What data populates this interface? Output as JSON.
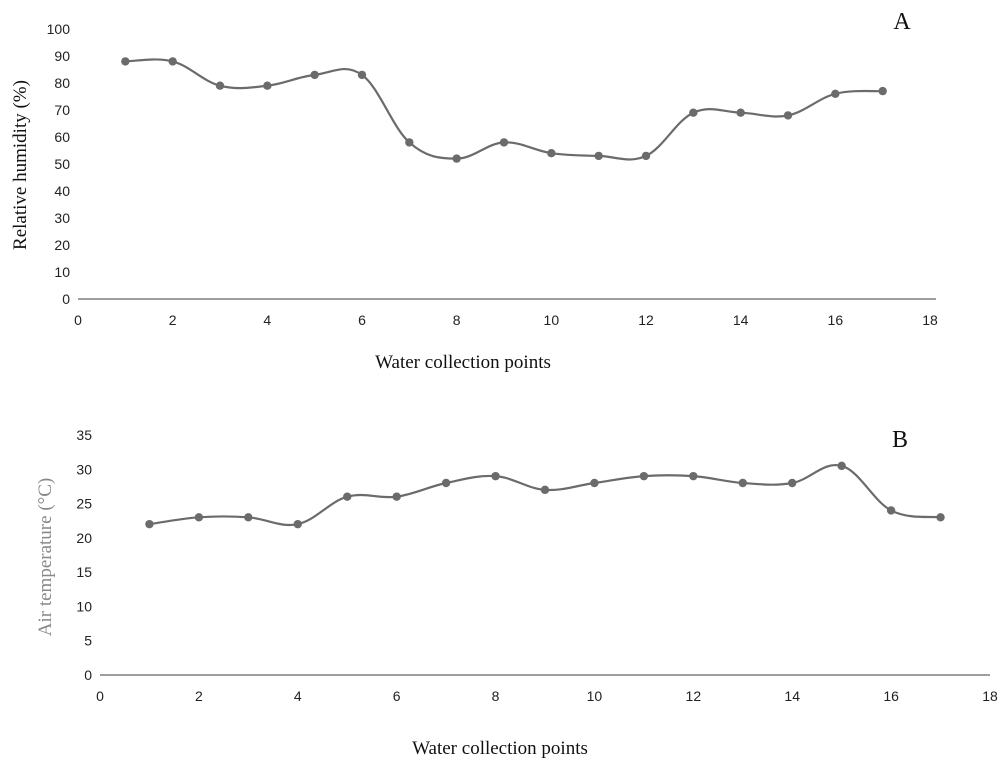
{
  "colors": {
    "series": "#6b6b6b",
    "axis": "#7f7f7f",
    "text": "#222222",
    "ylabel_b": "#888888"
  },
  "chart_data": [
    {
      "type": "line",
      "panel_label": "A",
      "title": "",
      "xlabel": "Water collection points",
      "ylabel": "Relative humidity  (%)",
      "xlim": [
        0,
        18
      ],
      "ylim": [
        0,
        100
      ],
      "xticks": [
        "0",
        "2",
        "4",
        "6",
        "8",
        "10",
        "12",
        "14",
        "16",
        "18"
      ],
      "yticks": [
        "0",
        "10",
        "20",
        "30",
        "40",
        "50",
        "60",
        "70",
        "80",
        "90",
        "100"
      ],
      "grid": false,
      "smooth": true,
      "series": [
        {
          "x": [
            1,
            2,
            3,
            4,
            5,
            6,
            7,
            8,
            9,
            10,
            11,
            12,
            13,
            14,
            15,
            16,
            17
          ],
          "y": [
            88,
            88,
            79,
            79,
            83,
            83,
            58,
            52,
            58,
            54,
            53,
            53,
            69,
            69,
            68,
            76,
            77
          ]
        }
      ]
    },
    {
      "type": "line",
      "panel_label": "B",
      "title": "",
      "xlabel": "Water collection points",
      "ylabel": "Air temperature (°C)",
      "xlim": [
        0,
        18
      ],
      "ylim": [
        0,
        35
      ],
      "xticks": [
        "0",
        "2",
        "4",
        "6",
        "8",
        "10",
        "12",
        "14",
        "16",
        "18"
      ],
      "yticks": [
        "0",
        "5",
        "10",
        "15",
        "20",
        "25",
        "30",
        "35"
      ],
      "grid": false,
      "smooth": true,
      "series": [
        {
          "x": [
            1,
            2,
            3,
            4,
            5,
            6,
            7,
            8,
            9,
            10,
            11,
            12,
            13,
            14,
            15,
            16,
            17
          ],
          "y": [
            22,
            23,
            23,
            22,
            26,
            26,
            28,
            29,
            27,
            28,
            29,
            29,
            28,
            28,
            30.5,
            24,
            23
          ]
        }
      ]
    }
  ]
}
